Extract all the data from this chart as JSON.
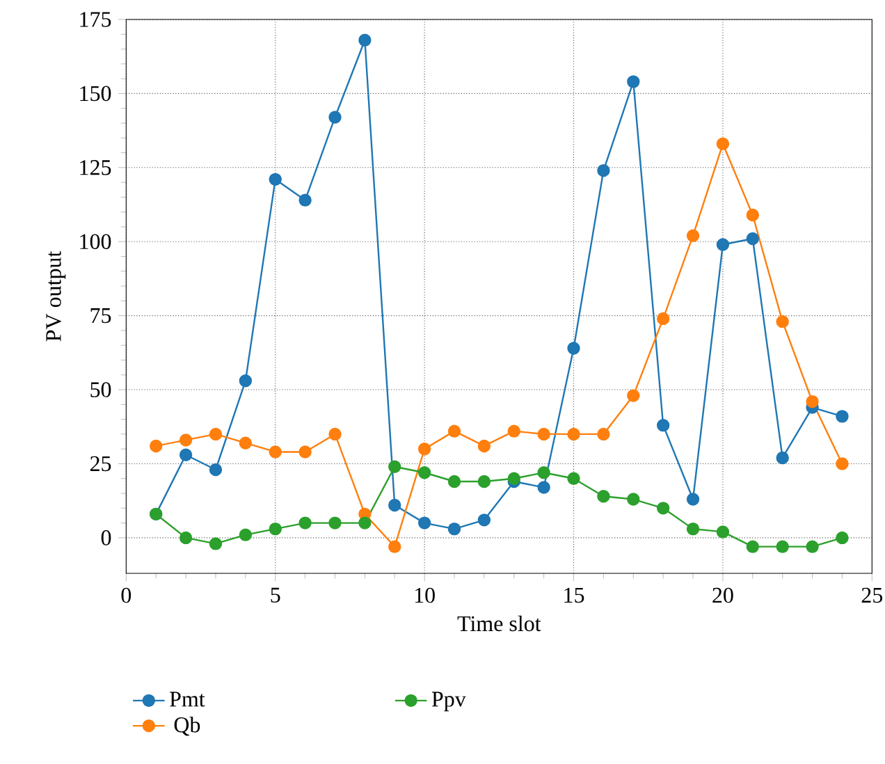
{
  "chart_data": {
    "type": "line",
    "xlabel": "Time slot",
    "ylabel": "PV output",
    "x": [
      1,
      2,
      3,
      4,
      5,
      6,
      7,
      8,
      9,
      10,
      11,
      12,
      13,
      14,
      15,
      16,
      17,
      18,
      19,
      20,
      21,
      22,
      23,
      24
    ],
    "series": [
      {
        "name": "Pmt",
        "color": "#1f77b4",
        "values": [
          8,
          28,
          23,
          53,
          121,
          114,
          142,
          168,
          11,
          5,
          3,
          6,
          19,
          17,
          64,
          124,
          154,
          38,
          13,
          99,
          101,
          27,
          44,
          41
        ]
      },
      {
        "name": "Qb",
        "color": "#ff7f0e",
        "values": [
          31,
          33,
          35,
          32,
          29,
          29,
          35,
          8,
          -3,
          30,
          36,
          31,
          36,
          35,
          35,
          35,
          48,
          74,
          102,
          133,
          109,
          73,
          46,
          25
        ]
      },
      {
        "name": "Ppv",
        "color": "#2ca02c",
        "values": [
          8,
          0,
          -2,
          1,
          3,
          5,
          5,
          5,
          24,
          22,
          19,
          19,
          20,
          22,
          20,
          14,
          13,
          10,
          3,
          2,
          -3,
          -3,
          -3,
          0
        ]
      }
    ],
    "xlim": [
      0,
      25
    ],
    "ylim": [
      -12,
      175
    ],
    "xticks": [
      0,
      5,
      10,
      15,
      20,
      25
    ],
    "yticks": [
      0,
      25,
      50,
      75,
      100,
      125,
      150,
      175
    ],
    "grid": true,
    "legend": "bottom",
    "marker": "circle",
    "line_style": "solid"
  }
}
